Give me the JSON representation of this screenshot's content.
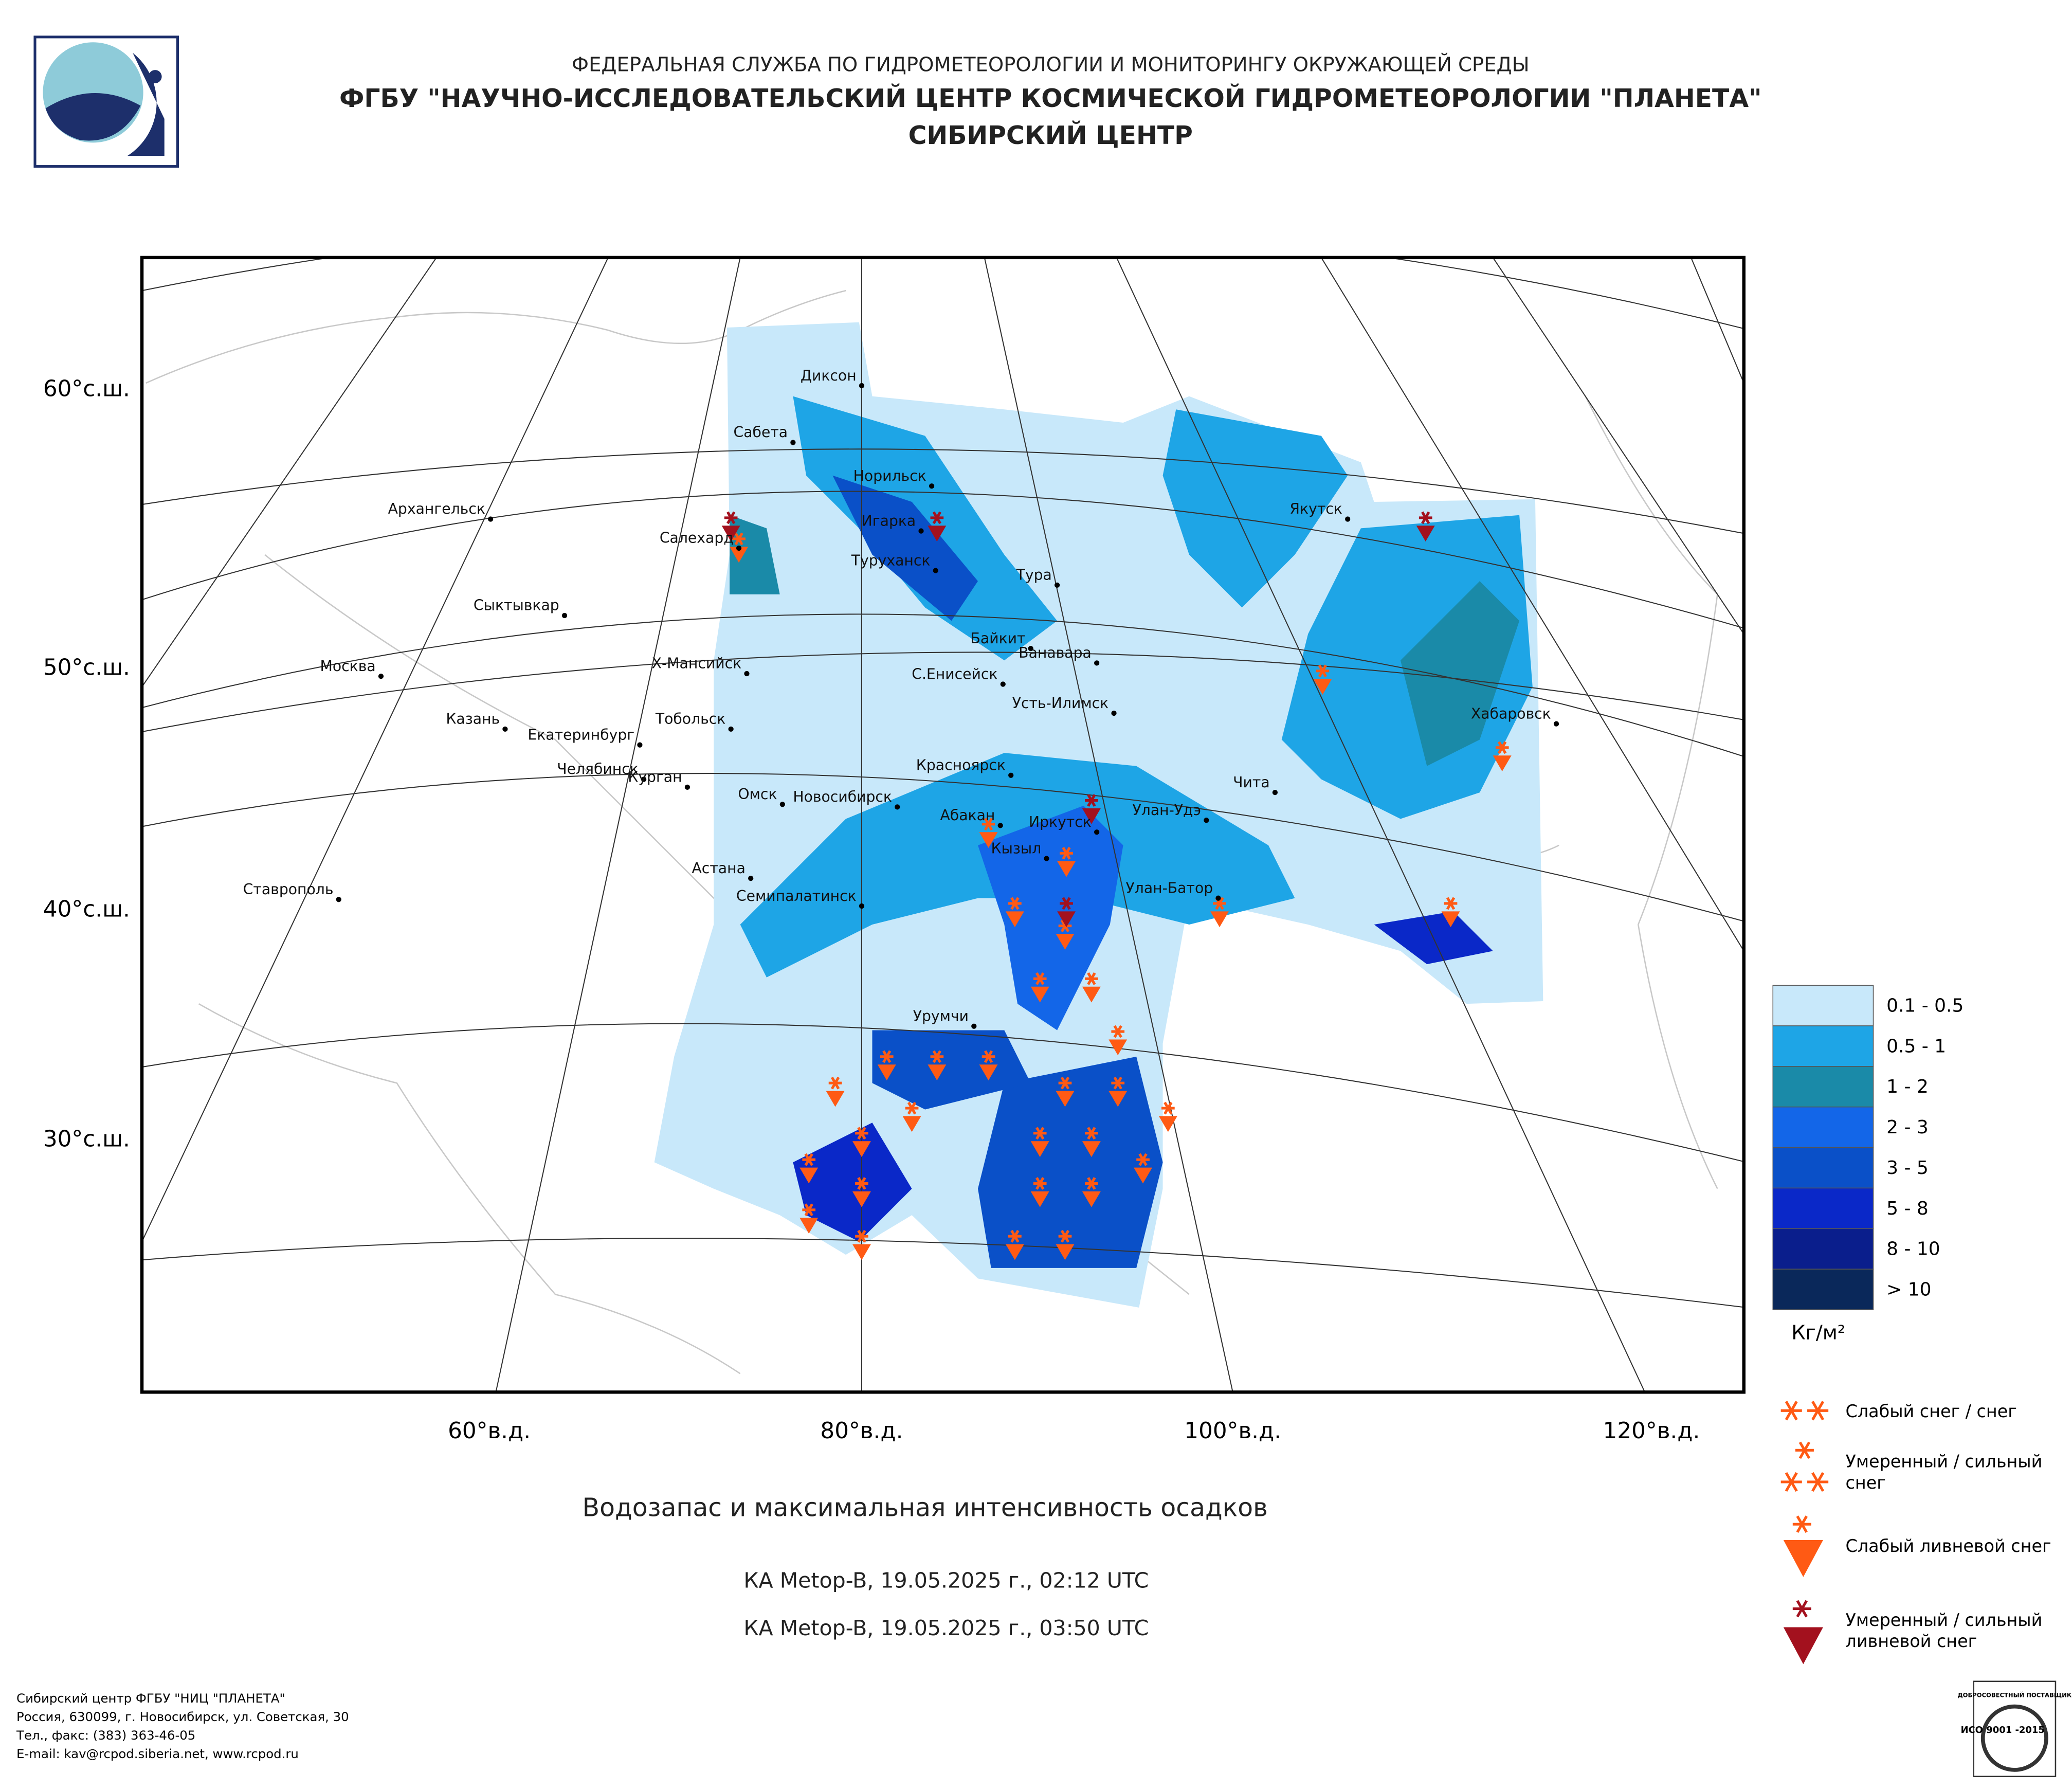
{
  "header": {
    "agency": "ФЕДЕРАЛЬНАЯ СЛУЖБА ПО ГИДРОМЕТЕОРОЛОГИИ И МОНИТОРИНГУ ОКРУЖАЮЩЕЙ СРЕДЫ",
    "center": "ФГБУ \"НАУЧНО-ИССЛЕДОВАТЕЛЬСКИЙ ЦЕНТР КОСМИЧЕСКОЙ ГИДРОМЕТЕОРОЛОГИИ \"ПЛАНЕТА\"",
    "branch": "СИБИРСКИЙ ЦЕНТР"
  },
  "map": {
    "lat_labels": [
      "60°с.ш.",
      "50°с.ш.",
      "40°с.ш.",
      "30°с.ш."
    ],
    "lon_labels": [
      "60°в.д.",
      "80°в.д.",
      "100°в.д.",
      "120°в.д."
    ],
    "cities": [
      "Диксон",
      "Сабета",
      "Норильск",
      "Игарка",
      "Салехард",
      "Туруханск",
      "Тура",
      "Архангельск",
      "Сыктывкар",
      "Байкит",
      "Ванавара",
      "Х-Мансийск",
      "С.Енисейск",
      "Москва",
      "Усть-Илимск",
      "Казань",
      "Тобольск",
      "Екатеринбург",
      "Челябинск",
      "Курган",
      "Красноярск",
      "Омск",
      "Новосибирск",
      "Абакан",
      "Улан-Удэ",
      "Иркутск",
      "Чита",
      "Кызыл",
      "Астана",
      "Семипалатинск",
      "Улан-Батор",
      "Ставрополь",
      "Урумчи",
      "Якутск",
      "Хабаровск"
    ],
    "title": "Водозапас и максимальная интенсивность осадков",
    "passes": [
      "КА Metop-B, 19.05.2025 г., 02:12 UTC",
      "КА Metop-B, 19.05.2025 г., 03:50 UTC"
    ]
  },
  "legend": {
    "classes": [
      "0.1 - 0.5",
      "0.5 - 1",
      "1 - 2",
      "2 - 3",
      "3 - 5",
      "5 - 8",
      "8 - 10",
      "> 10"
    ],
    "colors": [
      "#c8e8fa",
      "#1ea5e6",
      "#1a8aa8",
      "#1366e8",
      "#0a50c8",
      "#0a28c8",
      "#0a1e8c",
      "#0a285a"
    ],
    "unit": "Кг/м²"
  },
  "symbols": [
    [
      "Слабый снег / снег"
    ],
    [
      "Умеренный / сильный",
      "снег"
    ],
    [
      "Слабый ливневой снег"
    ],
    [
      "Умеренный / сильный",
      "ливневой снег"
    ]
  ],
  "footer": [
    "Сибирский центр ФГБУ \"НИЦ \"ПЛАНЕТА\"",
    "Россия, 630099, г. Новосибирск, ул. Советская, 30",
    "Тел., факс: (383) 363-46-05",
    "E-mail: kav@rcpod.siberia.net, www.rcpod.ru"
  ],
  "badge": [
    "ДОБРОСОВЕСТНЫЙ ПОСТАВЩИК",
    "ИСО 9001 -2015"
  ]
}
